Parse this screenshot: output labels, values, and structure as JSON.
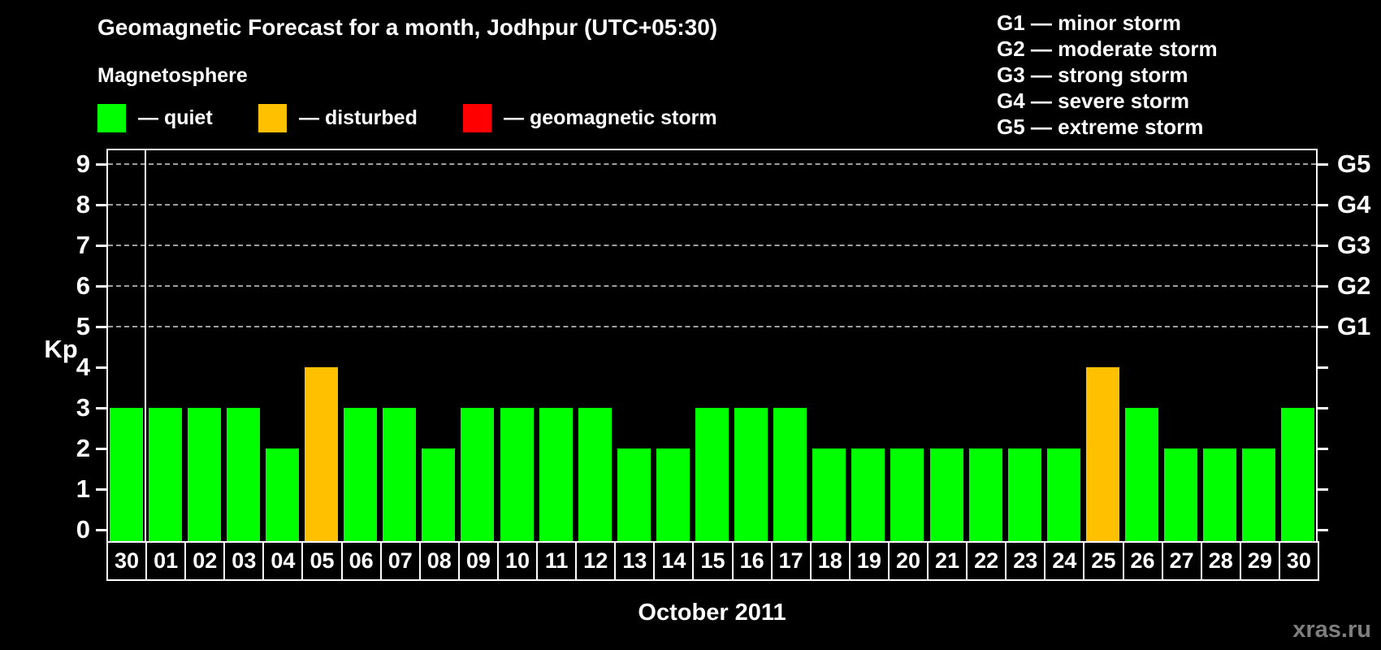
{
  "title": "Geomagnetic Forecast for a month, Jodhpur (UTC+05:30)",
  "legend": {
    "heading": "Magnetosphere",
    "items": [
      {
        "key": "quiet",
        "label": "— quiet",
        "color": "#00ff00"
      },
      {
        "key": "disturbed",
        "label": "— disturbed",
        "color": "#ffc000"
      },
      {
        "key": "storm",
        "label": "— geomagnetic storm",
        "color": "#ff0000"
      }
    ]
  },
  "g_scale_legend": [
    "G1 — minor storm",
    "G2 — moderate storm",
    "G3 — strong storm",
    "G4 — severe storm",
    "G5 — extreme storm"
  ],
  "watermark": "xras.ru",
  "chart_data": {
    "type": "bar",
    "title": "Geomagnetic Forecast for a month, Jodhpur (UTC+05:30)",
    "xlabel": "October 2011",
    "ylabel": "Kp",
    "ylim": [
      -0.3,
      9.4
    ],
    "legend_position": "top",
    "grid": "horizontal dashed lines at storm levels only",
    "grid_kp_levels": [
      5,
      6,
      7,
      8,
      9
    ],
    "kp_ticks": [
      0,
      1,
      2,
      3,
      4,
      5,
      6,
      7,
      8,
      9
    ],
    "g_axis": [
      {
        "kp": 5,
        "label": "G1"
      },
      {
        "kp": 6,
        "label": "G2"
      },
      {
        "kp": 7,
        "label": "G3"
      },
      {
        "kp": 8,
        "label": "G4"
      },
      {
        "kp": 9,
        "label": "G5"
      }
    ],
    "categories": [
      "30",
      "01",
      "02",
      "03",
      "04",
      "05",
      "06",
      "07",
      "08",
      "09",
      "10",
      "11",
      "12",
      "13",
      "14",
      "15",
      "16",
      "17",
      "18",
      "19",
      "20",
      "21",
      "22",
      "23",
      "24",
      "25",
      "26",
      "27",
      "28",
      "29",
      "30"
    ],
    "values": [
      3,
      3,
      3,
      3,
      2,
      4,
      3,
      3,
      2,
      3,
      3,
      3,
      3,
      2,
      2,
      3,
      3,
      3,
      2,
      2,
      2,
      2,
      2,
      2,
      2,
      4,
      3,
      2,
      2,
      2,
      3
    ],
    "bar_status": [
      "quiet",
      "quiet",
      "quiet",
      "quiet",
      "quiet",
      "disturbed",
      "quiet",
      "quiet",
      "quiet",
      "quiet",
      "quiet",
      "quiet",
      "quiet",
      "quiet",
      "quiet",
      "quiet",
      "quiet",
      "quiet",
      "quiet",
      "quiet",
      "quiet",
      "quiet",
      "quiet",
      "quiet",
      "quiet",
      "disturbed",
      "quiet",
      "quiet",
      "quiet",
      "quiet",
      "quiet"
    ],
    "colors": {
      "quiet": "#00ff00",
      "disturbed": "#ffc000",
      "storm": "#ff0000"
    },
    "month_separator_after_index": 0
  }
}
